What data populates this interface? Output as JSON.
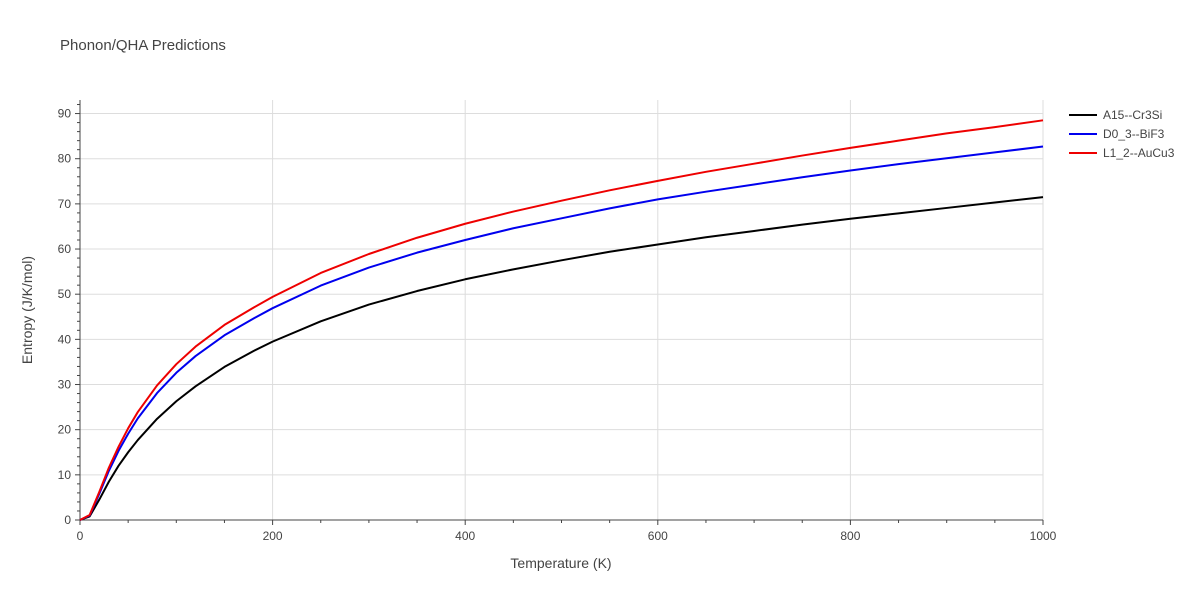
{
  "chart_data": {
    "type": "line",
    "title": "Phonon/QHA Predictions",
    "xlabel": "Temperature (K)",
    "ylabel": "Entropy (J/K/mol)",
    "xlim": [
      0,
      1000
    ],
    "ylim": [
      0,
      93
    ],
    "xticks": [
      0,
      200,
      400,
      600,
      800,
      1000
    ],
    "yticks": [
      0,
      10,
      20,
      30,
      40,
      50,
      60,
      70,
      80,
      90
    ],
    "grid": true,
    "legend_position": "top-right",
    "x": [
      0,
      10,
      20,
      30,
      40,
      50,
      60,
      80,
      100,
      120,
      150,
      180,
      200,
      250,
      300,
      350,
      400,
      450,
      500,
      550,
      600,
      650,
      700,
      750,
      800,
      850,
      900,
      950,
      1000
    ],
    "series": [
      {
        "name": "A15--Cr3Si",
        "color": "#000000",
        "values": [
          0,
          0.8,
          4.5,
          8.5,
          12.0,
          15.0,
          17.7,
          22.4,
          26.3,
          29.6,
          33.9,
          37.4,
          39.5,
          44.0,
          47.7,
          50.7,
          53.3,
          55.5,
          57.5,
          59.4,
          61.0,
          62.6,
          64.0,
          65.4,
          66.7,
          67.9,
          69.1,
          70.3,
          71.5
        ]
      },
      {
        "name": "D0_3--BiF3",
        "color": "#0000ee",
        "values": [
          0,
          1.0,
          5.8,
          10.9,
          15.3,
          19.1,
          22.5,
          28.1,
          32.6,
          36.3,
          40.9,
          44.6,
          46.9,
          51.9,
          55.9,
          59.2,
          62.0,
          64.6,
          66.8,
          69.0,
          71.0,
          72.7,
          74.3,
          75.9,
          77.4,
          78.8,
          80.1,
          81.4,
          82.7
        ]
      },
      {
        "name": "L1_2--AuCu3",
        "color": "#ee0000",
        "values": [
          0,
          1.1,
          6.2,
          11.6,
          16.2,
          20.3,
          23.9,
          29.8,
          34.5,
          38.4,
          43.2,
          47.0,
          49.4,
          54.7,
          58.9,
          62.5,
          65.6,
          68.3,
          70.7,
          73.0,
          75.1,
          77.1,
          78.9,
          80.7,
          82.4,
          84.0,
          85.6,
          87.0,
          88.5
        ]
      }
    ]
  }
}
